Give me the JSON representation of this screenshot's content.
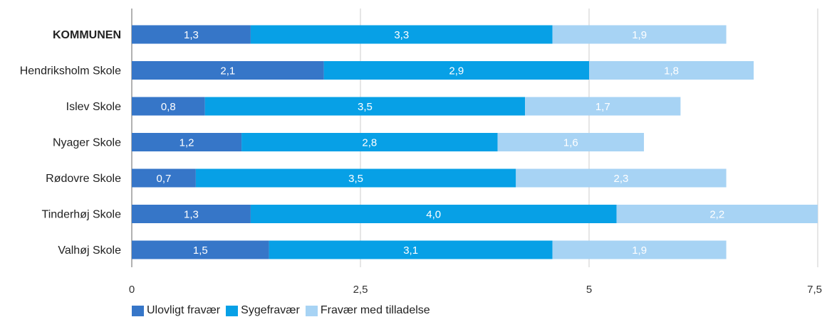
{
  "chart_data": {
    "type": "bar",
    "orientation": "horizontal",
    "stacked": true,
    "categories": [
      "KOMMUNEN",
      "Hendriksholm Skole",
      "Islev Skole",
      "Nyager Skole",
      "Rødovre Skole",
      "Tinderhøj Skole",
      "Valhøj Skole"
    ],
    "bold_categories": [
      "KOMMUNEN"
    ],
    "series": [
      {
        "name": "Ulovligt fravær",
        "color": "#3676c8",
        "values": [
          1.3,
          2.1,
          0.8,
          1.2,
          0.7,
          1.3,
          1.5
        ],
        "labels": [
          "1,3",
          "2,1",
          "0,8",
          "1,2",
          "0,7",
          "1,3",
          "1,5"
        ],
        "label_color": "#ffffff"
      },
      {
        "name": "Sygefravær",
        "color": "#07a0e6",
        "values": [
          3.3,
          2.9,
          3.5,
          2.8,
          3.5,
          4.0,
          3.1
        ],
        "labels": [
          "3,3",
          "2,9",
          "3,5",
          "2,8",
          "3,5",
          "4,0",
          "3,1"
        ],
        "label_color": "#ffffff"
      },
      {
        "name": "Fravær med tilladelse",
        "color": "#a7d3f4",
        "values": [
          1.9,
          1.8,
          1.7,
          1.6,
          2.3,
          2.2,
          1.9
        ],
        "labels": [
          "1,9",
          "1,8",
          "1,7",
          "1,6",
          "2,3",
          "2,2",
          "1,9"
        ],
        "label_color": "#ffffff"
      }
    ],
    "xlim": [
      0,
      7.5
    ],
    "xticks": [
      0,
      2.5,
      5,
      7.5
    ],
    "xtick_labels": [
      "0",
      "2,5",
      "5",
      "7,5"
    ],
    "grid": true,
    "legend_position": "bottom-left"
  }
}
